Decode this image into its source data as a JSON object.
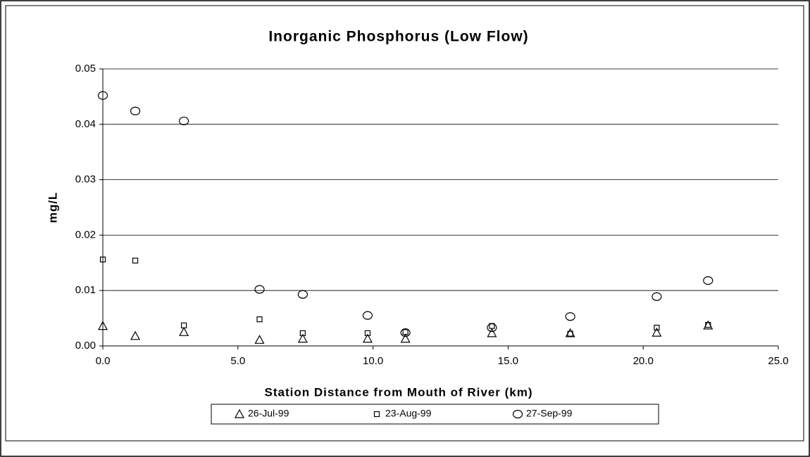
{
  "chart_data": {
    "type": "scatter",
    "title": "Inorganic Phosphorus   (Low Flow)",
    "x_label": "Station Distance from Mouth of River (km)",
    "y_label": "mg/L",
    "x": [
      0.0,
      1.2,
      3.0,
      5.8,
      7.4,
      9.8,
      11.2,
      14.4,
      17.3,
      20.5,
      22.4
    ],
    "series": [
      {
        "name": "26-Jul-99",
        "color": "#000000",
        "marker": "triangle",
        "values": [
          0.0036,
          0.0018,
          0.0025,
          0.0011,
          0.0013,
          0.0013,
          0.0013,
          0.0023,
          0.0023,
          0.0024,
          0.0037
        ]
      },
      {
        "name": "23-Aug-99",
        "color": "#000000",
        "marker": "square",
        "values": [
          0.0156,
          0.0154,
          0.0037,
          0.0048,
          0.0023,
          0.0023,
          0.0025,
          0.0036,
          0.0022,
          0.0033,
          0.0038
        ]
      },
      {
        "name": "27-Sep-99",
        "color": "#000000",
        "marker": "circle",
        "values": [
          0.0452,
          0.0424,
          0.0406,
          0.0102,
          0.0093,
          0.0055,
          0.0024,
          0.0033,
          0.0053,
          0.0089,
          0.0118
        ]
      }
    ],
    "xlim": [
      0,
      25
    ],
    "xticks": [
      {
        "value": 0,
        "label": "0.0"
      },
      {
        "value": 5,
        "label": "5.0"
      },
      {
        "value": 10,
        "label": "10.0"
      },
      {
        "value": 15,
        "label": "15.0"
      },
      {
        "value": 20,
        "label": "20.0"
      },
      {
        "value": 25,
        "label": "25.0"
      }
    ],
    "ylim": [
      0,
      0.05
    ],
    "yticks": [
      {
        "value": 0,
        "label": "0.00"
      },
      0.01,
      0.02,
      0.03,
      0.04,
      0.05
    ],
    "grid": true,
    "legend": "bottom"
  }
}
